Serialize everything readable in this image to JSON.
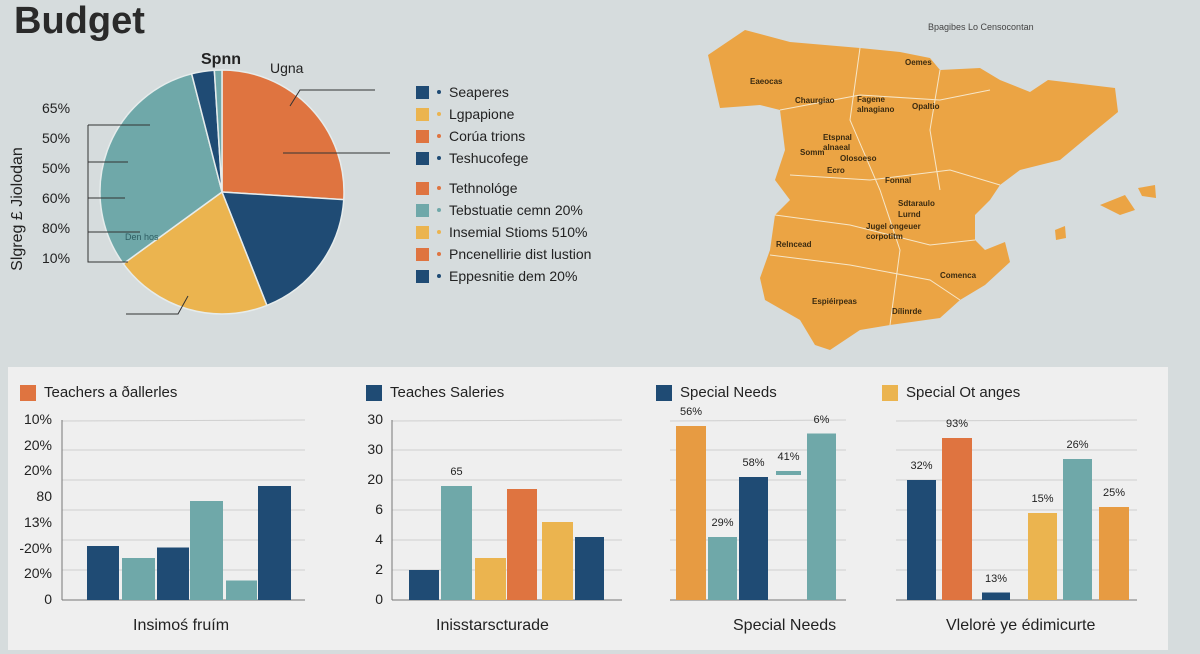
{
  "title": "Budget",
  "colors": {
    "navy": "#1f4b74",
    "teal": "#6fa8a9",
    "yellow": "#ebb44f",
    "orange": "#df7440",
    "amber": "#e79b42",
    "map": "#eba444"
  },
  "pie": {
    "labels_top": [
      "Spnn",
      "Ugna"
    ],
    "inner_label": "Den hos",
    "side_title": "Slgreg £ Jiolodan",
    "side_ticks": [
      "65%",
      "50%",
      "50%",
      "60%",
      "80%",
      "10%"
    ],
    "chart_data": {
      "type": "pie",
      "slices": [
        {
          "color": "orange",
          "share": 26
        },
        {
          "color": "navy",
          "share": 18
        },
        {
          "color": "yellow",
          "share": 21
        },
        {
          "color": "teal",
          "share": 31
        },
        {
          "color": "navy",
          "share": 3
        },
        {
          "color": "teal",
          "share": 1
        }
      ]
    }
  },
  "legend": [
    {
      "color": "navy",
      "label": "Seaperes"
    },
    {
      "color": "yellow",
      "label": "Lgpapione"
    },
    {
      "color": "orange",
      "label": "Corúa trions"
    },
    {
      "color": "navy",
      "label": "Teshucofege"
    },
    {
      "color": "orange",
      "label": "Tethnológe"
    },
    {
      "color": "teal",
      "label": "Tebstuatie cemn 20%"
    },
    {
      "color": "yellow",
      "label": "Insemial Stioms 510%"
    },
    {
      "color": "orange",
      "label": "Pncenellirie dist lustion"
    },
    {
      "color": "navy",
      "label": "Eppesnitie dem 20%"
    }
  ],
  "map": {
    "title": "Bpagibes Lo Censocontan",
    "labels": [
      "Oemes",
      "Eaeocas",
      "Chaurgiao",
      "Fagene\nalnagiano",
      "Opaltio",
      "Etspnal\nalnaeal",
      "Somm",
      "Olosoeso",
      "Ecro",
      "Fonnal",
      "Sdtaraulo",
      "Lurnd",
      "Jugel ongeuer\ncorpotitm",
      "Relncead",
      "Comenca",
      "Espiéirpeas",
      "Dílinrde"
    ]
  },
  "chart_data": [
    {
      "type": "bar",
      "title": "Teachers a ðallerles",
      "legend_color": "orange",
      "xlabel": "Insimoś fruím",
      "ytick_labels": [
        "0",
        "20%",
        "-20%",
        "13%",
        "80",
        "20%",
        "20%",
        "10%"
      ],
      "bars": [
        {
          "color": "navy",
          "value": 1.8
        },
        {
          "color": "teal",
          "value": 1.4
        },
        {
          "color": "navy",
          "value": 1.75
        },
        {
          "color": "teal",
          "value": 3.3
        },
        {
          "color": "teal",
          "value": 0.65
        },
        {
          "color": "navy",
          "value": 3.8
        }
      ]
    },
    {
      "type": "bar",
      "title": "Teaches Saleries",
      "legend_color": "navy",
      "xlabel": "Inisstarscturade",
      "ytick_labels": [
        "0",
        "2",
        "4",
        "6",
        "20",
        "30",
        "30"
      ],
      "bars": [
        {
          "color": "navy",
          "value": 1.0
        },
        {
          "color": "teal",
          "value": 3.8,
          "label": "65"
        },
        {
          "color": "yellow",
          "value": 1.4
        },
        {
          "color": "orange",
          "value": 3.7
        },
        {
          "color": "yellow",
          "value": 2.6
        },
        {
          "color": "navy",
          "value": 2.1
        }
      ]
    },
    {
      "type": "bar",
      "title": "Special Needs",
      "legend_color": "navy",
      "xlabel": "Special Needs",
      "ytick_labels": [],
      "bars": [
        {
          "color": "amber",
          "value": 5.8,
          "label": "56%"
        },
        {
          "color": "teal",
          "value": 2.1,
          "label": "29%"
        },
        {
          "color": "navy",
          "value": 4.1,
          "label": "58%"
        },
        {
          "color": "teal",
          "value": 4.3,
          "label": "41%",
          "floating": true
        },
        {
          "color": "teal",
          "value": 5.55,
          "label": "6%"
        }
      ]
    },
    {
      "type": "bar",
      "title": "Special Ot anges",
      "legend_color": "yellow",
      "xlabel": "Vlelorė ye édimicurte",
      "ytick_labels": [],
      "bars": [
        {
          "color": "navy",
          "value": 4.0,
          "label": "32%"
        },
        {
          "color": "orange",
          "value": 5.4,
          "label": "93%"
        },
        {
          "color": "navy",
          "value": 0.25,
          "label": "13%"
        },
        {
          "color": "yellow",
          "value": 2.9,
          "label": "15%"
        },
        {
          "color": "teal",
          "value": 4.7,
          "label": "26%"
        },
        {
          "color": "amber",
          "value": 3.1,
          "label": "25%"
        }
      ]
    }
  ]
}
